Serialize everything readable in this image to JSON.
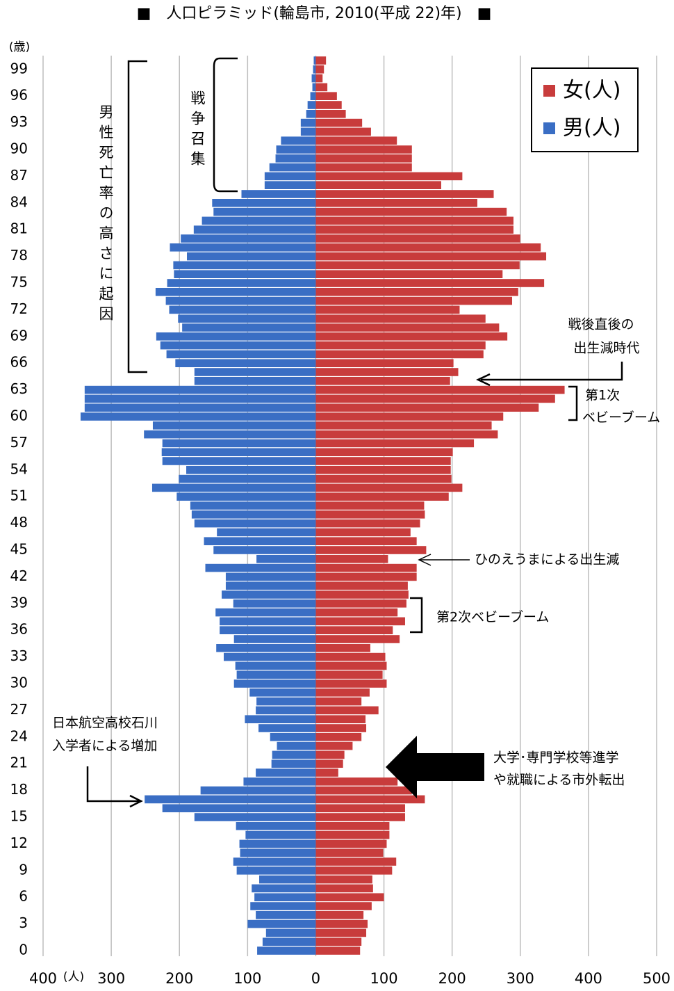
{
  "chart_data": {
    "type": "pyramid",
    "title": "■　人口ピラミッド(輪島市, 2010(平成 22)年)　■",
    "y_label": "(歳)",
    "x_label": "(人)",
    "categories": [
      "0",
      null,
      null,
      "3",
      null,
      null,
      "6",
      null,
      null,
      "9",
      null,
      null,
      "12",
      null,
      null,
      "15",
      null,
      null,
      "18",
      null,
      null,
      "21",
      null,
      null,
      "24",
      null,
      null,
      "27",
      null,
      null,
      "30",
      null,
      null,
      "33",
      null,
      null,
      "36",
      null,
      null,
      "39",
      null,
      null,
      "42",
      null,
      null,
      "45",
      null,
      null,
      "48",
      null,
      null,
      "51",
      null,
      null,
      "54",
      null,
      null,
      "57",
      null,
      null,
      "60",
      null,
      null,
      "63",
      null,
      null,
      "66",
      null,
      null,
      "69",
      null,
      null,
      "72",
      null,
      null,
      "75",
      null,
      null,
      "78",
      null,
      null,
      "81",
      null,
      null,
      "84",
      null,
      null,
      "87",
      null,
      null,
      "90",
      null,
      null,
      "93",
      null,
      null,
      "96",
      null,
      null,
      "99",
      null
    ],
    "series": [
      {
        "name": "女(人)",
        "color": "#c83c3c",
        "side": "right",
        "values": [
          65,
          67,
          74,
          76,
          70,
          82,
          100,
          84,
          83,
          112,
          118,
          99,
          104,
          108,
          108,
          131,
          131,
          160,
          141,
          120,
          33,
          40,
          42,
          54,
          67,
          74,
          73,
          92,
          67,
          79,
          104,
          98,
          104,
          102,
          80,
          123,
          113,
          131,
          120,
          133,
          136,
          135,
          148,
          148,
          106,
          162,
          148,
          139,
          153,
          160,
          159,
          195,
          215,
          199,
          198,
          198,
          201,
          232,
          267,
          258,
          275,
          327,
          351,
          365,
          197,
          209,
          202,
          246,
          249,
          281,
          269,
          249,
          211,
          288,
          297,
          335,
          274,
          299,
          338,
          330,
          300,
          290,
          290,
          280,
          237,
          261,
          184,
          215,
          141,
          141,
          141,
          119,
          81,
          68,
          44,
          38,
          31,
          17,
          10,
          12,
          15
        ]
      },
      {
        "name": "男(人)",
        "color": "#3a6ec4",
        "side": "left",
        "values": [
          86,
          78,
          73,
          100,
          88,
          96,
          90,
          94,
          83,
          116,
          121,
          111,
          112,
          103,
          117,
          178,
          225,
          251,
          169,
          106,
          88,
          65,
          64,
          57,
          67,
          84,
          104,
          88,
          87,
          97,
          120,
          116,
          118,
          135,
          146,
          120,
          141,
          141,
          147,
          121,
          138,
          132,
          132,
          162,
          87,
          150,
          164,
          145,
          178,
          182,
          184,
          204,
          240,
          201,
          190,
          225,
          226,
          225,
          252,
          239,
          345,
          339,
          339,
          339,
          178,
          178,
          206,
          219,
          228,
          234,
          196,
          202,
          215,
          220,
          235,
          218,
          208,
          209,
          189,
          214,
          198,
          179,
          167,
          150,
          152,
          109,
          75,
          75,
          68,
          59,
          58,
          51,
          22,
          22,
          14,
          12,
          8,
          5,
          6,
          4,
          3
        ]
      }
    ],
    "xlim": [
      -400,
      500
    ],
    "xticks": [
      {
        "value": -400,
        "label": "400"
      },
      {
        "value": -300,
        "label": "300"
      },
      {
        "value": -200,
        "label": "200"
      },
      {
        "value": -100,
        "label": "100"
      },
      0,
      100,
      200,
      300,
      400,
      500
    ],
    "grid": true,
    "legend_position": "top-right",
    "annotations": {
      "male_mortality": "男性死亡率の高さに起因",
      "war": "戦争召集",
      "postwar": {
        "lines": [
          "戦後直後の",
          "出生減時代"
        ]
      },
      "boom1": {
        "lines": [
          "第1次",
          "ベビーブーム"
        ]
      },
      "hinoeuma": "ひのえうまによる出生減",
      "boom2": "第2次ベビーブーム",
      "jal": {
        "lines": [
          "日本航空高校石川",
          "入学者による増加"
        ]
      },
      "outflow": {
        "lines": [
          "大学･専門学校等進学",
          "や就職による市外転出"
        ]
      }
    }
  }
}
